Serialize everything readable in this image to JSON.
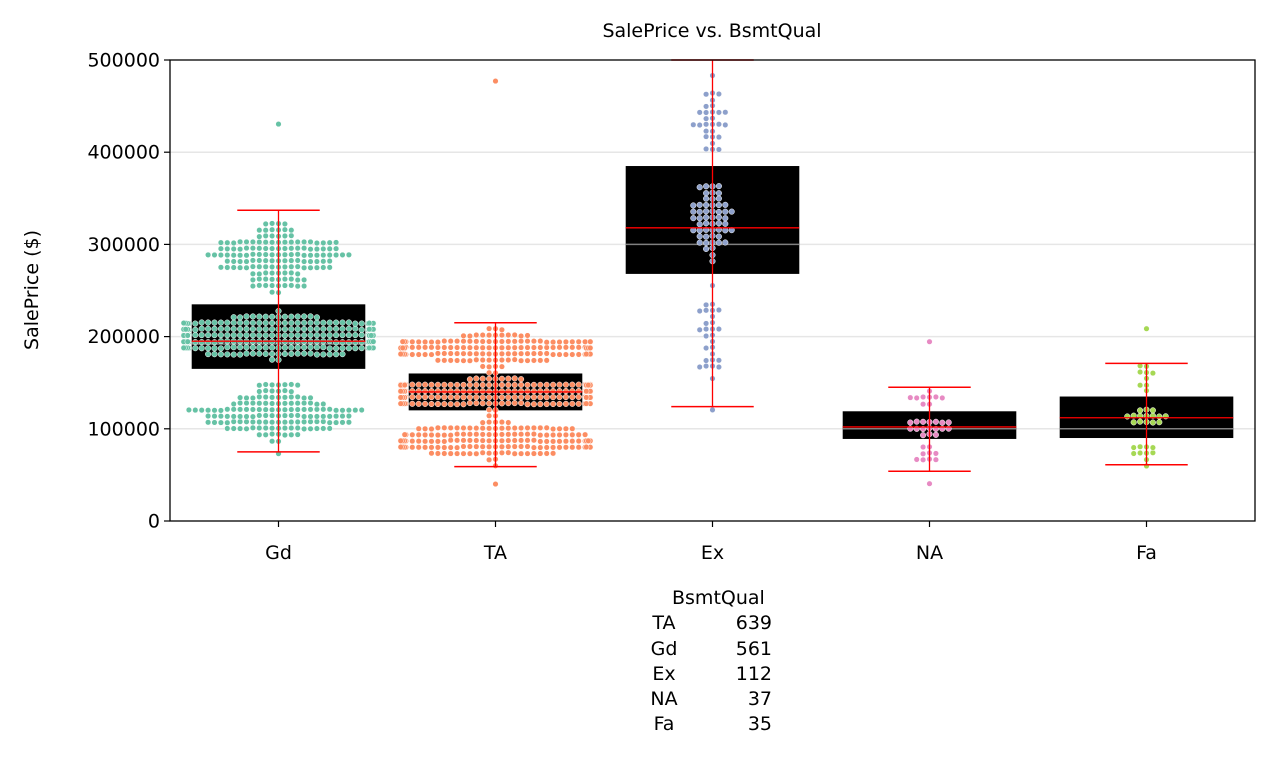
{
  "chart_data": {
    "type": "box",
    "title": "SalePrice vs. BsmtQual",
    "xlabel": "",
    "ylabel": "SalePrice ($)",
    "ylim": [
      0,
      500000
    ],
    "yticks": [
      0,
      100000,
      200000,
      300000,
      400000,
      500000
    ],
    "ytick_labels": [
      "0",
      "100000",
      "200000",
      "300000",
      "400000",
      "500000"
    ],
    "grid": "horizontal",
    "categories": [
      "Gd",
      "TA",
      "Ex",
      "NA",
      "Fa"
    ],
    "colors": [
      "#66c2a5",
      "#fc8d62",
      "#8da0cb",
      "#e78ac3",
      "#a6d854"
    ],
    "box_face": "#000000",
    "whisker_color": "#ff0000",
    "median_color": "#808080",
    "mean_color": "#ff0000",
    "boxes": [
      {
        "name": "Gd",
        "q1": 165000,
        "median": 192000,
        "mean": 195000,
        "q3": 235000,
        "whisker_low": 75000,
        "whisker_high": 337000
      },
      {
        "name": "TA",
        "q1": 120000,
        "median": 135000,
        "mean": 140000,
        "q3": 160000,
        "whisker_low": 59000,
        "whisker_high": 215000
      },
      {
        "name": "Ex",
        "q1": 268000,
        "median": 300000,
        "mean": 318000,
        "q3": 385000,
        "whisker_low": 124000,
        "whisker_high": 500000
      },
      {
        "name": "NA",
        "q1": 89000,
        "median": 100000,
        "mean": 102000,
        "q3": 119000,
        "whisker_low": 54000,
        "whisker_high": 145000
      },
      {
        "name": "Fa",
        "q1": 90000,
        "median": 100000,
        "mean": 112000,
        "q3": 135000,
        "whisker_low": 61000,
        "whisker_high": 171000
      }
    ],
    "swarm_ranges": [
      {
        "name": "Gd",
        "min": 75000,
        "max": 430000
      },
      {
        "name": "TA",
        "min": 38000,
        "max": 475000
      },
      {
        "name": "Ex",
        "min": 124000,
        "max": 485000
      },
      {
        "name": "NA",
        "min": 40000,
        "max": 198000
      },
      {
        "name": "Fa",
        "min": 62000,
        "max": 208000
      }
    ],
    "counts_table": {
      "header": "BsmtQual",
      "rows": [
        {
          "category": "TA",
          "count": "639"
        },
        {
          "category": "Gd",
          "count": "561"
        },
        {
          "category": "Ex",
          "count": "112"
        },
        {
          "category": "NA",
          "count": "37"
        },
        {
          "category": "Fa",
          "count": "35"
        }
      ]
    }
  }
}
